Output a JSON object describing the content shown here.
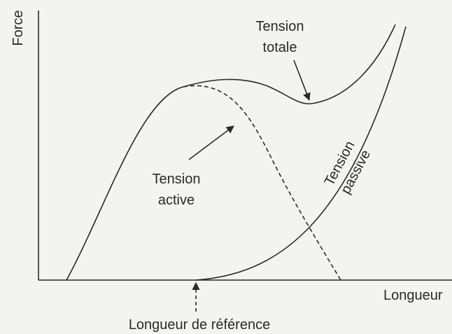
{
  "labels": {
    "y_axis": "Force",
    "x_axis": "Longueur",
    "reference": "Longueur de référence",
    "total": [
      "Tension",
      "totale"
    ],
    "active": [
      "Tension",
      "active"
    ],
    "passive": [
      "Tension",
      "passive"
    ]
  }
}
